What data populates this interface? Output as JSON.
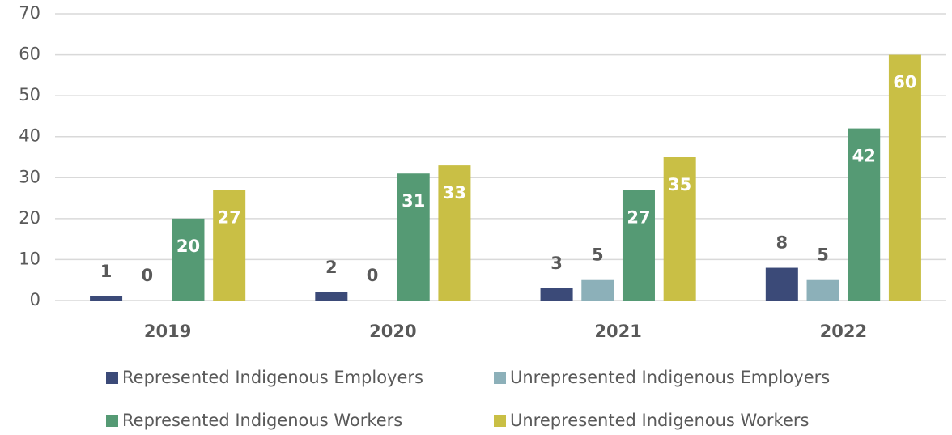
{
  "chart_data": {
    "type": "bar",
    "categories": [
      "2019",
      "2020",
      "2021",
      "2022"
    ],
    "series": [
      {
        "name": "Represented Indigenous Employers",
        "color": "#3b4a78",
        "values": [
          1,
          2,
          3,
          8
        ]
      },
      {
        "name": "Unrepresented Indigenous Employers",
        "color": "#8cb0b9",
        "values": [
          0,
          0,
          5,
          5
        ]
      },
      {
        "name": "Represented Indigenous Workers",
        "color": "#559a74",
        "values": [
          20,
          31,
          27,
          42
        ]
      },
      {
        "name": "Unrepresented Indigenous Workers",
        "color": "#c9bf45",
        "values": [
          27,
          33,
          35,
          60
        ]
      }
    ],
    "ylim": [
      0,
      70
    ],
    "yticks": [
      0,
      10,
      20,
      30,
      40,
      50,
      60,
      70
    ],
    "grid": true,
    "legend": "bottom"
  }
}
